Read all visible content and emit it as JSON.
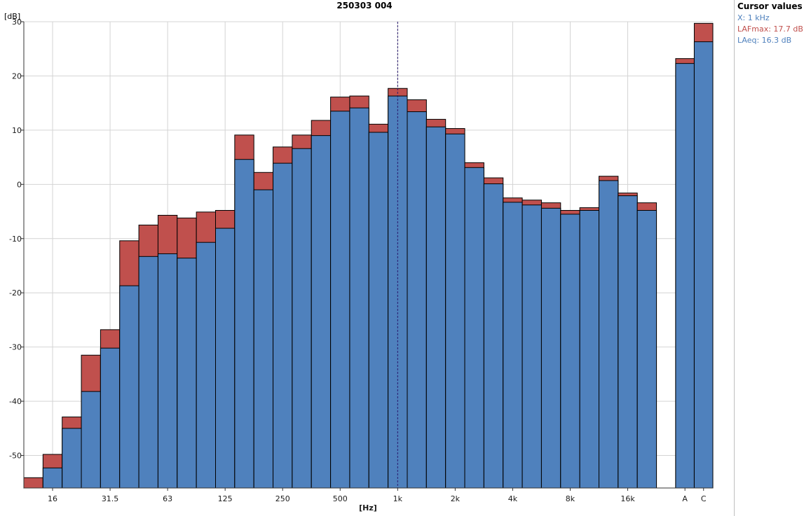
{
  "chart_data": {
    "type": "bar",
    "title": "250303 004",
    "ylabel": "[dB]",
    "xlabel": "[Hz]",
    "ylim": [
      -56,
      30
    ],
    "yticks": [
      -50,
      -40,
      -30,
      -20,
      -10,
      0,
      10,
      20,
      30
    ],
    "grid": true,
    "stacked_overlay": true,
    "bands": [
      "12.5",
      "16",
      "20",
      "25",
      "31.5",
      "40",
      "50",
      "63",
      "80",
      "100",
      "125",
      "160",
      "200",
      "250",
      "315",
      "400",
      "500",
      "630",
      "800",
      "1k",
      "1.25k",
      "1.6k",
      "2k",
      "2.5k",
      "3.15k",
      "4k",
      "5k",
      "6.3k",
      "8k",
      "10k",
      "12.5k",
      "16k",
      "20k"
    ],
    "band_tick_labels": {
      "16": "16",
      "31.5": "31.5",
      "63": "63",
      "125": "125",
      "250": "250",
      "500": "500",
      "1k": "1k",
      "2k": "2k",
      "4k": "4k",
      "8k": "8k",
      "16k": "16k"
    },
    "totals": [
      "A",
      "C"
    ],
    "series": [
      {
        "name": "LAeq",
        "color": "#4f81bd",
        "values": [
          null,
          -52.3,
          -45.0,
          -38.2,
          -30.2,
          -18.7,
          -13.3,
          -12.8,
          -13.6,
          -10.7,
          -8.1,
          4.6,
          -1.0,
          3.9,
          6.6,
          9.0,
          13.5,
          14.1,
          9.6,
          16.3,
          13.4,
          10.6,
          9.3,
          3.1,
          0.1,
          -3.3,
          -3.8,
          -4.4,
          -5.5,
          -4.8,
          0.7,
          -2.1,
          -4.8
        ],
        "total_values": [
          22.3,
          26.3
        ]
      },
      {
        "name": "LAFmax",
        "color": "#c0504d",
        "values": [
          -54.1,
          -49.8,
          -42.9,
          -31.5,
          -26.8,
          -10.4,
          -7.5,
          -5.7,
          -6.2,
          -5.1,
          -4.8,
          9.1,
          2.2,
          6.9,
          9.1,
          11.8,
          16.1,
          16.3,
          11.1,
          17.7,
          15.6,
          12.0,
          10.3,
          4.0,
          1.2,
          -2.5,
          -2.9,
          -3.4,
          -4.8,
          -4.3,
          1.5,
          -1.6,
          -3.4
        ],
        "total_values": [
          23.2,
          29.7
        ]
      }
    ],
    "cursor_band": "1k"
  },
  "cursor_panel": {
    "title": "Cursor values",
    "x_line": "X: 1 kHz",
    "max_line": "LAFmax: 17.7 dB",
    "eq_line": "LAeq: 16.3 dB",
    "x_color": "#4f81bd",
    "max_color": "#c0504d",
    "eq_color": "#4f81bd"
  }
}
